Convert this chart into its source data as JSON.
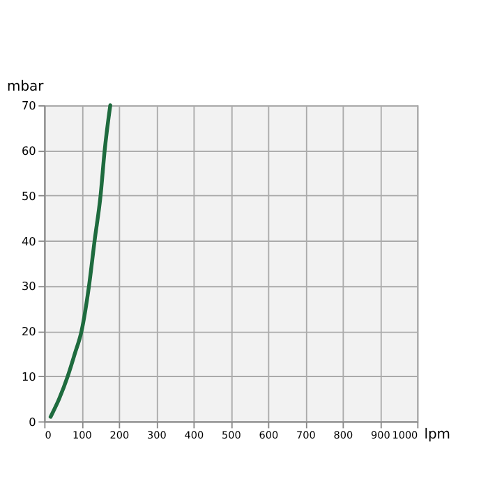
{
  "chart_data": {
    "type": "line",
    "xlabel": "lpm",
    "ylabel": "mbar",
    "series": [
      {
        "color": "#1e6b3e",
        "x": [
          17,
          40,
          63,
          82,
          100,
          120,
          135,
          151,
          162,
          177
        ],
        "values": [
          1,
          5,
          10,
          15,
          20,
          30,
          40,
          50,
          60,
          70
        ]
      }
    ],
    "xlim": [
      0,
      1000
    ],
    "xticks": [
      0,
      100,
      200,
      300,
      400,
      500,
      600,
      700,
      800,
      900,
      1000
    ],
    "ylim": [
      0,
      70
    ],
    "yticks": [
      0,
      10,
      20,
      30,
      40,
      50,
      60,
      70
    ],
    "grid": true,
    "marker": "none",
    "line_style": "solid"
  }
}
